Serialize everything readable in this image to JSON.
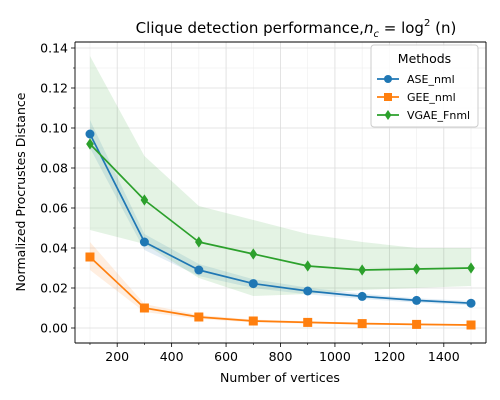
{
  "chart_data": {
    "type": "line",
    "title": "Clique detection performance,",
    "title_math": {
      "base": "n",
      "base_sub": "c",
      "rhs": " = log",
      "rhs_sup": "2",
      "rhs_arg": " (n)"
    },
    "xlabel": "Number of vertices",
    "ylabel": "Normalized Procrustes Distance",
    "xlim": [
      45,
      1555
    ],
    "ylim": [
      -0.0075,
      0.143
    ],
    "x_ticks": [
      200,
      400,
      600,
      800,
      1000,
      1200,
      1400
    ],
    "x_tick_labels": [
      "200",
      "400",
      "600",
      "800",
      "1000",
      "1200",
      "1400"
    ],
    "y_ticks": [
      0.0,
      0.02,
      0.04,
      0.06,
      0.08,
      0.1,
      0.12,
      0.14
    ],
    "y_tick_labels": [
      "0.00",
      "0.02",
      "0.04",
      "0.06",
      "0.08",
      "0.10",
      "0.12",
      "0.14"
    ],
    "grid": true,
    "legend": {
      "title": "Methods",
      "placement": "top-right"
    },
    "x": [
      100,
      300,
      500,
      700,
      900,
      1100,
      1300,
      1500
    ],
    "series": [
      {
        "name": "ASE_nml",
        "color": "#1f77b4",
        "marker": "circle",
        "values": [
          0.097,
          0.043,
          0.029,
          0.0222,
          0.0185,
          0.0158,
          0.0138,
          0.0124
        ],
        "band_lower": [
          0.09,
          0.039,
          0.026,
          0.02,
          0.0168,
          0.0145,
          0.0127,
          0.0113
        ],
        "band_upper": [
          0.104,
          0.047,
          0.032,
          0.0244,
          0.0202,
          0.0171,
          0.0149,
          0.0135
        ]
      },
      {
        "name": "GEE_nml",
        "color": "#ff7f0e",
        "marker": "square",
        "values": [
          0.0355,
          0.01,
          0.0055,
          0.0035,
          0.0028,
          0.0022,
          0.0018,
          0.0015
        ],
        "band_lower": [
          0.029,
          0.008,
          0.0045,
          0.0028,
          0.0022,
          0.0017,
          0.0014,
          0.0011
        ],
        "band_upper": [
          0.043,
          0.012,
          0.0065,
          0.0042,
          0.0034,
          0.0027,
          0.0022,
          0.0019
        ]
      },
      {
        "name": "VGAE_Fnml",
        "color": "#2ca02c",
        "marker": "diamond",
        "values": [
          0.092,
          0.064,
          0.043,
          0.037,
          0.031,
          0.029,
          0.0295,
          0.03
        ],
        "band_lower": [
          0.049,
          0.042,
          0.025,
          0.016,
          0.017,
          0.019,
          0.02,
          0.021
        ],
        "band_upper": [
          0.136,
          0.086,
          0.061,
          0.054,
          0.047,
          0.043,
          0.04,
          0.04
        ]
      }
    ]
  }
}
